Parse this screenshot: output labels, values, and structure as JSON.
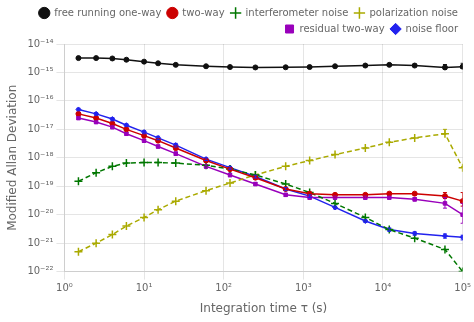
{
  "chart_data": {
    "type": "line",
    "x_label": "Integration time τ (s)",
    "y_label": "Modified Allan Deviation",
    "log": true,
    "grid": true,
    "legend": "upper right",
    "xlim": [
      1.0,
      100000.0
    ],
    "ylim": [
      1e-22,
      1e-14
    ],
    "xticks": [
      {
        "value": 1,
        "label": "10⁰"
      },
      {
        "value": 10,
        "label": "10¹"
      },
      {
        "value": 100,
        "label": "10²"
      },
      {
        "value": 1000,
        "label": "10³"
      },
      {
        "value": 10000,
        "label": "10⁴"
      },
      {
        "value": 100000,
        "label": "10⁵"
      }
    ],
    "yticks": [
      {
        "value": 1e-22,
        "label": "10⁻²²"
      },
      {
        "value": 1e-21,
        "label": "10⁻²¹"
      },
      {
        "value": 1e-20,
        "label": "10⁻²⁰"
      },
      {
        "value": 1e-19,
        "label": "10⁻¹⁹"
      },
      {
        "value": 1e-18,
        "label": "10⁻¹⁸"
      },
      {
        "value": 1e-17,
        "label": "10⁻¹⁷"
      },
      {
        "value": 1e-16,
        "label": "10⁻¹⁶"
      },
      {
        "value": 1e-15,
        "label": "10⁻¹⁵"
      },
      {
        "value": 1e-14,
        "label": "10⁻¹⁴"
      }
    ],
    "x": [
      1.5,
      2.5,
      4,
      6,
      10,
      15,
      25,
      60,
      120,
      250,
      600,
      1200,
      2500,
      6000,
      12000,
      25000,
      60000,
      100000
    ],
    "series": [
      {
        "name": "free running one-way",
        "color": "#111111",
        "marker": "circle",
        "line_style": "solid",
        "values": [
          3.2e-15,
          3.2e-15,
          3.1e-15,
          2.8e-15,
          2.4e-15,
          2.1e-15,
          1.85e-15,
          1.65e-15,
          1.55e-15,
          1.5e-15,
          1.52e-15,
          1.55e-15,
          1.65e-15,
          1.75e-15,
          1.85e-15,
          1.75e-15,
          1.5e-15,
          1.6e-15
        ],
        "error_low": [
          1e-16,
          1e-16,
          1e-16,
          1e-16,
          1e-16,
          1e-16,
          1e-16,
          1e-16,
          1e-16,
          1e-16,
          1e-16,
          1e-16,
          1e-16,
          1e-16,
          1e-16,
          1e-16,
          2e-16,
          2e-16
        ],
        "error_high": [
          1e-16,
          1e-16,
          1e-16,
          1e-16,
          1e-16,
          1e-16,
          1e-16,
          1e-16,
          1e-16,
          1e-16,
          1e-16,
          1e-16,
          1e-16,
          1e-16,
          2e-16,
          2e-16,
          4e-16,
          5e-16
        ]
      },
      {
        "name": "two-way",
        "color": "#cc0000",
        "marker": "circle",
        "line_style": "solid",
        "values": [
          3.5e-17,
          2.5e-17,
          1.6e-17,
          1e-17,
          6e-18,
          4e-18,
          2.2e-18,
          8e-19,
          4e-19,
          2e-19,
          8e-20,
          5.5e-20,
          5e-20,
          5e-20,
          5.5e-20,
          5.5e-20,
          4.5e-20,
          3e-20
        ],
        "error_low": [
          4e-18,
          3e-18,
          2e-18,
          1e-18,
          7e-19,
          5e-19,
          3e-19,
          1e-19,
          5e-20,
          2.5e-20,
          8e-21,
          6e-21,
          5e-21,
          5e-21,
          6e-21,
          6e-21,
          8e-21,
          1e-20
        ],
        "error_high": [
          4e-18,
          3e-18,
          2e-18,
          1e-18,
          7e-19,
          5e-19,
          3e-19,
          1e-19,
          5e-20,
          2.5e-20,
          8e-21,
          6e-21,
          5e-21,
          5e-21,
          6e-21,
          6e-21,
          1.5e-20,
          3e-20
        ]
      },
      {
        "name": "interferometer noise",
        "color": "#007700",
        "marker": "plus",
        "line_style": "dashed",
        "values": [
          1.5e-19,
          3e-19,
          5e-19,
          6.5e-19,
          6.8e-19,
          6.8e-19,
          6.5e-19,
          5.5e-19,
          4e-19,
          2.5e-19,
          1.2e-19,
          6e-20,
          2.5e-20,
          8e-21,
          3e-21,
          1.5e-21,
          6e-22,
          1e-22
        ]
      },
      {
        "name": "polarization noise",
        "color": "#aaaa00",
        "marker": "plus",
        "line_style": "dashed",
        "values": [
          5e-22,
          1e-21,
          2e-21,
          4e-21,
          8e-21,
          1.5e-20,
          3e-20,
          7e-20,
          1.3e-19,
          2.5e-19,
          5e-19,
          8e-19,
          1.3e-18,
          2.2e-18,
          3.5e-18,
          5e-18,
          7e-18,
          4.5e-19
        ],
        "error_low": [
          0,
          0,
          0,
          0,
          0,
          0,
          0,
          0,
          0,
          0,
          0,
          0,
          0,
          0,
          0,
          0,
          0,
          0
        ],
        "error_high": [
          0,
          0,
          0,
          0,
          0,
          0,
          0,
          0,
          0,
          0,
          0,
          0,
          0,
          0,
          0,
          0,
          3e-18,
          0
        ]
      },
      {
        "name": "residual two-way",
        "color": "#9900bb",
        "marker": "square",
        "line_style": "solid",
        "values": [
          2.5e-17,
          1.8e-17,
          1.2e-17,
          7e-18,
          4e-18,
          2.5e-18,
          1.4e-18,
          5e-19,
          2.5e-19,
          1.2e-19,
          5e-20,
          4e-20,
          4e-20,
          4e-20,
          4e-20,
          3.5e-20,
          2.5e-20,
          1e-20
        ],
        "error_low": [
          3e-18,
          2e-18,
          1.5e-18,
          8e-19,
          5e-19,
          3e-19,
          2e-19,
          7e-20,
          3.5e-20,
          1.5e-20,
          6e-21,
          5e-21,
          5e-21,
          5e-21,
          5e-21,
          5e-21,
          8e-21,
          5e-21
        ],
        "error_high": [
          3e-18,
          2e-18,
          1.5e-18,
          8e-19,
          5e-19,
          3e-19,
          2e-19,
          7e-20,
          3.5e-20,
          1.5e-20,
          6e-21,
          5e-21,
          5e-21,
          5e-21,
          5e-21,
          5e-21,
          1.5e-20,
          1.5e-20
        ]
      },
      {
        "name": "noise floor",
        "color": "#2222ee",
        "marker": "diamond",
        "line_style": "solid",
        "values": [
          5e-17,
          3.5e-17,
          2.3e-17,
          1.4e-17,
          8e-18,
          5e-18,
          2.8e-18,
          9e-19,
          4.5e-19,
          2.2e-19,
          8e-20,
          4.5e-20,
          1.8e-20,
          6e-21,
          3e-21,
          2.2e-21,
          1.8e-21,
          1.6e-21
        ],
        "error_low": [
          5e-18,
          4e-18,
          3e-18,
          1.5e-18,
          1e-18,
          7e-19,
          4e-19,
          1e-19,
          5e-20,
          2.5e-20,
          1e-20,
          5e-21,
          2e-21,
          6e-22,
          4e-22,
          3e-22,
          3e-22,
          3e-22
        ],
        "error_high": [
          5e-18,
          4e-18,
          3e-18,
          1.5e-18,
          1e-18,
          7e-19,
          4e-19,
          1e-19,
          5e-20,
          2.5e-20,
          1e-20,
          5e-21,
          2e-21,
          6e-22,
          4e-22,
          3e-22,
          3e-22,
          3e-22
        ]
      }
    ]
  }
}
